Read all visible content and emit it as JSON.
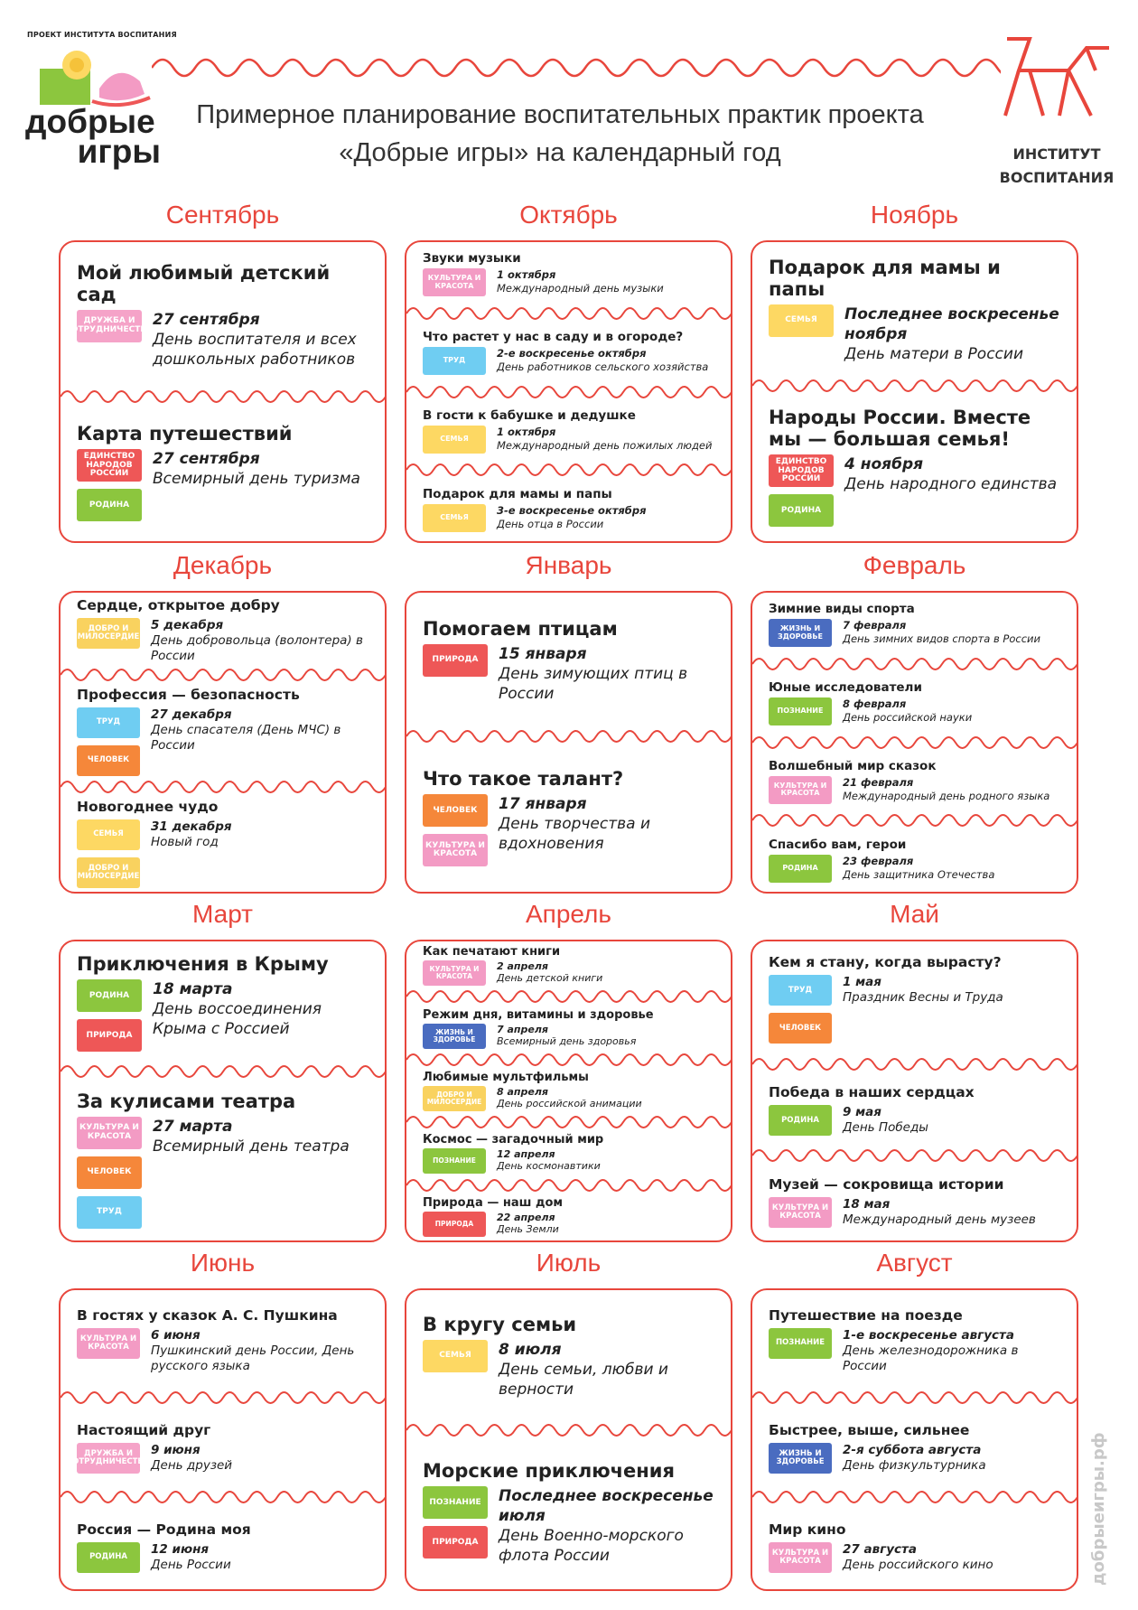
{
  "header": {
    "project_label": "ПРОЕКТ ИНСТИТУТА ВОСПИТАНИЯ",
    "logo_lines": [
      "добрые",
      "игры"
    ],
    "title_lines": [
      "Примерное планирование воспитательных практик проекта",
      "«Добрые игры» на календарный год"
    ],
    "institute_lines": [
      "ИНСТИТУТ",
      "ВОСПИТАНИЯ"
    ]
  },
  "side_text": "добрыеигры.рф",
  "months": [
    {
      "name": "Сентябрь",
      "events": [
        {
          "title": "Мой любимый детский сад",
          "tags": [
            {
              "label": "ДРУЖБА И СОТРУДНИЧЕСТВО",
              "color": "#f5a3c8"
            }
          ],
          "date": "27 сентября",
          "description": "День воспитателя и всех дошкольных работников"
        },
        {
          "title": "Карта путешествий",
          "tags": [
            {
              "label": "ЕДИНСТВО НАРОДОВ РОССИИ",
              "color": "#ee5757"
            },
            {
              "label": "РОДИНА",
              "color": "#8cc63e"
            }
          ],
          "date": "27 сентября",
          "description": "Всемирный день туризма"
        }
      ]
    },
    {
      "name": "Октябрь",
      "events": [
        {
          "title": "Звуки музыки",
          "tags": [
            {
              "label": "КУЛЬТУРА И КРАСОТА",
              "color": "#f39bc4"
            }
          ],
          "date": "1 октября",
          "description": "Международный день музыки"
        },
        {
          "title": "Что растет у нас в саду и в огороде?",
          "tags": [
            {
              "label": "ТРУД",
              "color": "#6fcdf2"
            }
          ],
          "date": "2-е воскресенье октября",
          "description": "День работников сельского хозяйства"
        },
        {
          "title": "В гости к бабушке и дедушке",
          "tags": [
            {
              "label": "СЕМЬЯ",
              "color": "#fdd863"
            }
          ],
          "date": "1 октября",
          "description": "Международный день пожилых людей"
        },
        {
          "title": "Подарок для мамы и папы",
          "tags": [
            {
              "label": "СЕМЬЯ",
              "color": "#fdd863"
            }
          ],
          "date": "3-е воскресенье октября",
          "description": "День отца в России"
        }
      ]
    },
    {
      "name": "Ноябрь",
      "events": [
        {
          "title": "Подарок для мамы и папы",
          "tags": [
            {
              "label": "СЕМЬЯ",
              "color": "#fdd863"
            }
          ],
          "date": "Последнее воскресенье ноября",
          "description": "День матери в России"
        },
        {
          "title": "Народы России. Вместе мы — большая семья!",
          "tags": [
            {
              "label": "ЕДИНСТВО НАРОДОВ РОССИИ",
              "color": "#ee5757"
            },
            {
              "label": "РОДИНА",
              "color": "#8cc63e"
            }
          ],
          "date": "4 ноября",
          "description": "День народного единства"
        }
      ]
    },
    {
      "name": "Декабрь",
      "events": [
        {
          "title": "Сердце, открытое добру",
          "tags": [
            {
              "label": "ДОБРО И МИЛОСЕРДИЕ",
              "color": "#f9d25f"
            }
          ],
          "date": "5 декабря",
          "description": "День добровольца (волонтера) в России"
        },
        {
          "title": "Профессия — безопасность",
          "tags": [
            {
              "label": "ТРУД",
              "color": "#6fcdf2"
            },
            {
              "label": "ЧЕЛОВЕК",
              "color": "#f5873a"
            }
          ],
          "date": "27 декабря",
          "description": "День спасателя (День МЧС) в России"
        },
        {
          "title": "Новогоднее чудо",
          "tags": [
            {
              "label": "СЕМЬЯ",
              "color": "#fdd863"
            },
            {
              "label": "ДОБРО И МИЛОСЕРДИЕ",
              "color": "#f9d25f"
            }
          ],
          "date": "31 декабря",
          "description": "Новый год"
        }
      ]
    },
    {
      "name": "Январь",
      "events": [
        {
          "title": "Помогаем птицам",
          "tags": [
            {
              "label": "ПРИРОДА",
              "color": "#ee5757"
            }
          ],
          "date": "15 января",
          "description": "День зимующих птиц в России"
        },
        {
          "title": "Что такое талант?",
          "tags": [
            {
              "label": "ЧЕЛОВЕК",
              "color": "#f5873a"
            },
            {
              "label": "КУЛЬТУРА И КРАСОТА",
              "color": "#f39bc4"
            }
          ],
          "date": "17 января",
          "description": "День творчества и вдохновения"
        }
      ]
    },
    {
      "name": "Февраль",
      "events": [
        {
          "title": "Зимние виды спорта",
          "tags": [
            {
              "label": "ЖИЗНЬ И ЗДОРОВЬЕ",
              "color": "#4a6cc0"
            }
          ],
          "date": "7 февраля",
          "description": "День зимних видов спорта в России"
        },
        {
          "title": "Юные исследователи",
          "tags": [
            {
              "label": "ПОЗНАНИЕ",
              "color": "#8cc63e"
            }
          ],
          "date": "8 февраля",
          "description": "День российской науки"
        },
        {
          "title": "Волшебный мир сказок",
          "tags": [
            {
              "label": "КУЛЬТУРА И КРАСОТА",
              "color": "#f39bc4"
            }
          ],
          "date": "21 февраля",
          "description": "Международный день родного языка"
        },
        {
          "title": "Спасибо вам, герои",
          "tags": [
            {
              "label": "РОДИНА",
              "color": "#8cc63e"
            }
          ],
          "date": "23 февраля",
          "description": "День защитника Отечества"
        }
      ]
    },
    {
      "name": "Март",
      "events": [
        {
          "title": "Приключения в Крыму",
          "tags": [
            {
              "label": "РОДИНА",
              "color": "#8cc63e"
            },
            {
              "label": "ПРИРОДА",
              "color": "#ee5757"
            }
          ],
          "date": "18 марта",
          "description": "День воссоединения Крыма с Россией"
        },
        {
          "title": "За кулисами театра",
          "tags": [
            {
              "label": "КУЛЬТУРА И КРАСОТА",
              "color": "#f39bc4"
            },
            {
              "label": "ЧЕЛОВЕК",
              "color": "#f5873a"
            },
            {
              "label": "ТРУД",
              "color": "#6fcdf2"
            }
          ],
          "date": "27 марта",
          "description": "Всемирный день театра"
        }
      ]
    },
    {
      "name": "Апрель",
      "events": [
        {
          "title": "Как печатают книги",
          "tags": [
            {
              "label": "КУЛЬТУРА И КРАСОТА",
              "color": "#f39bc4"
            }
          ],
          "date": "2 апреля",
          "description": "День детской книги"
        },
        {
          "title": "Режим дня, витамины и здоровье",
          "tags": [
            {
              "label": "ЖИЗНЬ И ЗДОРОВЬЕ",
              "color": "#4a6cc0"
            }
          ],
          "date": "7 апреля",
          "description": "Всемирный день здоровья"
        },
        {
          "title": "Любимые мультфильмы",
          "tags": [
            {
              "label": "ДОБРО И МИЛОСЕРДИЕ",
              "color": "#f9d25f"
            }
          ],
          "date": "8 апреля",
          "description": "День российской анимации"
        },
        {
          "title": "Космос — загадочный мир",
          "tags": [
            {
              "label": "ПОЗНАНИЕ",
              "color": "#8cc63e"
            }
          ],
          "date": "12 апреля",
          "description": "День космонавтики"
        },
        {
          "title": "Природа — наш дом",
          "tags": [
            {
              "label": "ПРИРОДА",
              "color": "#ee5757"
            }
          ],
          "date": "22 апреля",
          "description": "День Земли"
        }
      ]
    },
    {
      "name": "Май",
      "events": [
        {
          "title": "Кем я стану, когда вырасту?",
          "tags": [
            {
              "label": "ТРУД",
              "color": "#6fcdf2"
            },
            {
              "label": "ЧЕЛОВЕК",
              "color": "#f5873a"
            }
          ],
          "date": "1 мая",
          "description": "Праздник Весны и Труда"
        },
        {
          "title": "Победа в наших сердцах",
          "tags": [
            {
              "label": "РОДИНА",
              "color": "#8cc63e"
            }
          ],
          "date": "9 мая",
          "description": "День Победы"
        },
        {
          "title": "Музей — сокровища истории",
          "tags": [
            {
              "label": "КУЛЬТУРА И КРАСОТА",
              "color": "#f39bc4"
            }
          ],
          "date": "18 мая",
          "description": "Международный день музеев"
        }
      ]
    },
    {
      "name": "Июнь",
      "events": [
        {
          "title": "В гостях у сказок А. С. Пушкина",
          "tags": [
            {
              "label": "КУЛЬТУРА И КРАСОТА",
              "color": "#f39bc4"
            }
          ],
          "date": "6 июня",
          "description": "Пушкинский день России, День русского языка"
        },
        {
          "title": "Настоящий друг",
          "tags": [
            {
              "label": "ДРУЖБА И СОТРУДНИЧЕСТВО",
              "color": "#f5a3c8"
            }
          ],
          "date": "9 июня",
          "description": "День друзей"
        },
        {
          "title": "Россия — Родина моя",
          "tags": [
            {
              "label": "РОДИНА",
              "color": "#8cc63e"
            }
          ],
          "date": "12 июня",
          "description": "День России"
        }
      ]
    },
    {
      "name": "Июль",
      "events": [
        {
          "title": "В кругу семьи",
          "tags": [
            {
              "label": "СЕМЬЯ",
              "color": "#fdd863"
            }
          ],
          "date": "8 июля",
          "description": "День семьи, любви и верности"
        },
        {
          "title": "Морские приключения",
          "tags": [
            {
              "label": "ПОЗНАНИЕ",
              "color": "#8cc63e"
            },
            {
              "label": "ПРИРОДА",
              "color": "#ee5757"
            }
          ],
          "date": "Последнее воскресенье июля",
          "description": "День Военно-морского флота России"
        }
      ]
    },
    {
      "name": "Август",
      "events": [
        {
          "title": "Путешествие на поезде",
          "tags": [
            {
              "label": "ПОЗНАНИЕ",
              "color": "#8cc63e"
            }
          ],
          "date": "1-е воскресенье августа",
          "description": "День железнодорожника в России"
        },
        {
          "title": "Быстрее, выше, сильнее",
          "tags": [
            {
              "label": "ЖИЗНЬ И ЗДОРОВЬЕ",
              "color": "#4a6cc0"
            }
          ],
          "date": "2-я суббота августа",
          "description": "День физкультурника"
        },
        {
          "title": "Мир кино",
          "tags": [
            {
              "label": "КУЛЬТУРА И КРАСОТА",
              "color": "#f39bc4"
            }
          ],
          "date": "27 августа",
          "description": "День российского кино"
        }
      ]
    }
  ]
}
